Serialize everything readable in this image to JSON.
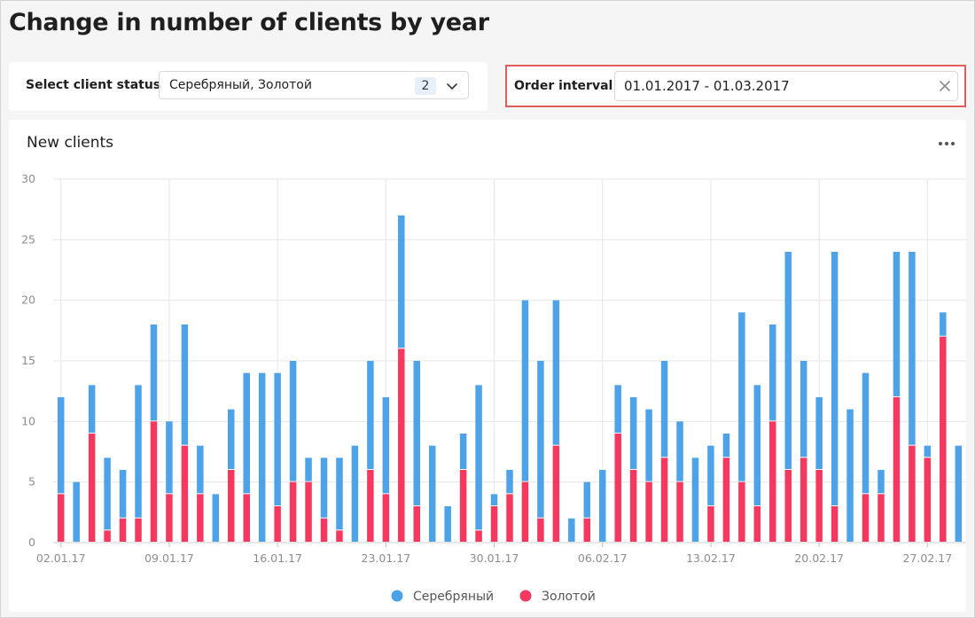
{
  "page": {
    "title": "Change in number of clients by year"
  },
  "status_filter": {
    "label": "Select client status",
    "value": "Серебряный, Золотой",
    "count": "2"
  },
  "interval_filter": {
    "label": "Order interval",
    "value": "01.01.2017 - 01.03.2017"
  },
  "chart_card": {
    "title": "New clients"
  },
  "colors": {
    "silver": "#4da2e8",
    "gold": "#f5385f",
    "grid": "#e6e6e6",
    "highlight_border": "#e35c5c"
  },
  "chart_data": {
    "type": "bar",
    "stacked": true,
    "title": "New clients",
    "xlabel": "",
    "ylabel": "",
    "ylim": [
      0,
      30
    ],
    "yticks": [
      0,
      5,
      10,
      15,
      20,
      25,
      30
    ],
    "grid": true,
    "legend_position": "bottom",
    "x_tick_labels": [
      {
        "index": 0,
        "label": "02.01.17"
      },
      {
        "index": 7,
        "label": "09.01.17"
      },
      {
        "index": 14,
        "label": "16.01.17"
      },
      {
        "index": 21,
        "label": "23.01.17"
      },
      {
        "index": 28,
        "label": "30.01.17"
      },
      {
        "index": 35,
        "label": "06.02.17"
      },
      {
        "index": 42,
        "label": "13.02.17"
      },
      {
        "index": 49,
        "label": "20.02.17"
      },
      {
        "index": 56,
        "label": "27.02.17"
      }
    ],
    "categories": [
      "02.01.17",
      "03.01.17",
      "04.01.17",
      "05.01.17",
      "06.01.17",
      "07.01.17",
      "08.01.17",
      "09.01.17",
      "10.01.17",
      "11.01.17",
      "12.01.17",
      "13.01.17",
      "14.01.17",
      "15.01.17",
      "16.01.17",
      "17.01.17",
      "18.01.17",
      "19.01.17",
      "20.01.17",
      "21.01.17",
      "22.01.17",
      "23.01.17",
      "24.01.17",
      "25.01.17",
      "26.01.17",
      "27.01.17",
      "28.01.17",
      "29.01.17",
      "30.01.17",
      "31.01.17",
      "01.02.17",
      "02.02.17",
      "03.02.17",
      "04.02.17",
      "05.02.17",
      "06.02.17",
      "07.02.17",
      "08.02.17",
      "09.02.17",
      "10.02.17",
      "11.02.17",
      "12.02.17",
      "13.02.17",
      "14.02.17",
      "15.02.17",
      "16.02.17",
      "17.02.17",
      "18.02.17",
      "19.02.17",
      "20.02.17",
      "21.02.17",
      "22.02.17",
      "23.02.17",
      "24.02.17",
      "25.02.17",
      "26.02.17",
      "27.02.17",
      "28.02.17",
      "01.03.17"
    ],
    "series": [
      {
        "name": "Золотой",
        "color": "#f5385f",
        "values": [
          4,
          0,
          9,
          1,
          2,
          2,
          10,
          4,
          8,
          4,
          0,
          6,
          4,
          0,
          3,
          5,
          5,
          2,
          1,
          0,
          6,
          4,
          16,
          3,
          0,
          0,
          6,
          1,
          3,
          4,
          5,
          2,
          8,
          0,
          2,
          0,
          9,
          6,
          5,
          7,
          5,
          0,
          3,
          7,
          5,
          3,
          10,
          6,
          7,
          6,
          3,
          0,
          4,
          4,
          12,
          8,
          7,
          17,
          0
        ]
      },
      {
        "name": "Серебряный",
        "color": "#4da2e8",
        "values": [
          8,
          5,
          4,
          6,
          4,
          11,
          8,
          6,
          10,
          4,
          4,
          5,
          10,
          14,
          11,
          10,
          2,
          5,
          6,
          8,
          9,
          8,
          11,
          12,
          8,
          3,
          3,
          12,
          1,
          2,
          15,
          13,
          12,
          2,
          3,
          6,
          4,
          6,
          6,
          8,
          5,
          7,
          5,
          2,
          14,
          10,
          8,
          18,
          8,
          6,
          21,
          11,
          10,
          2,
          12,
          16,
          1,
          2,
          8
        ]
      }
    ]
  },
  "legend": {
    "items": [
      {
        "label": "Серебряный",
        "color": "#4da2e8"
      },
      {
        "label": "Золотой",
        "color": "#f5385f"
      }
    ]
  }
}
